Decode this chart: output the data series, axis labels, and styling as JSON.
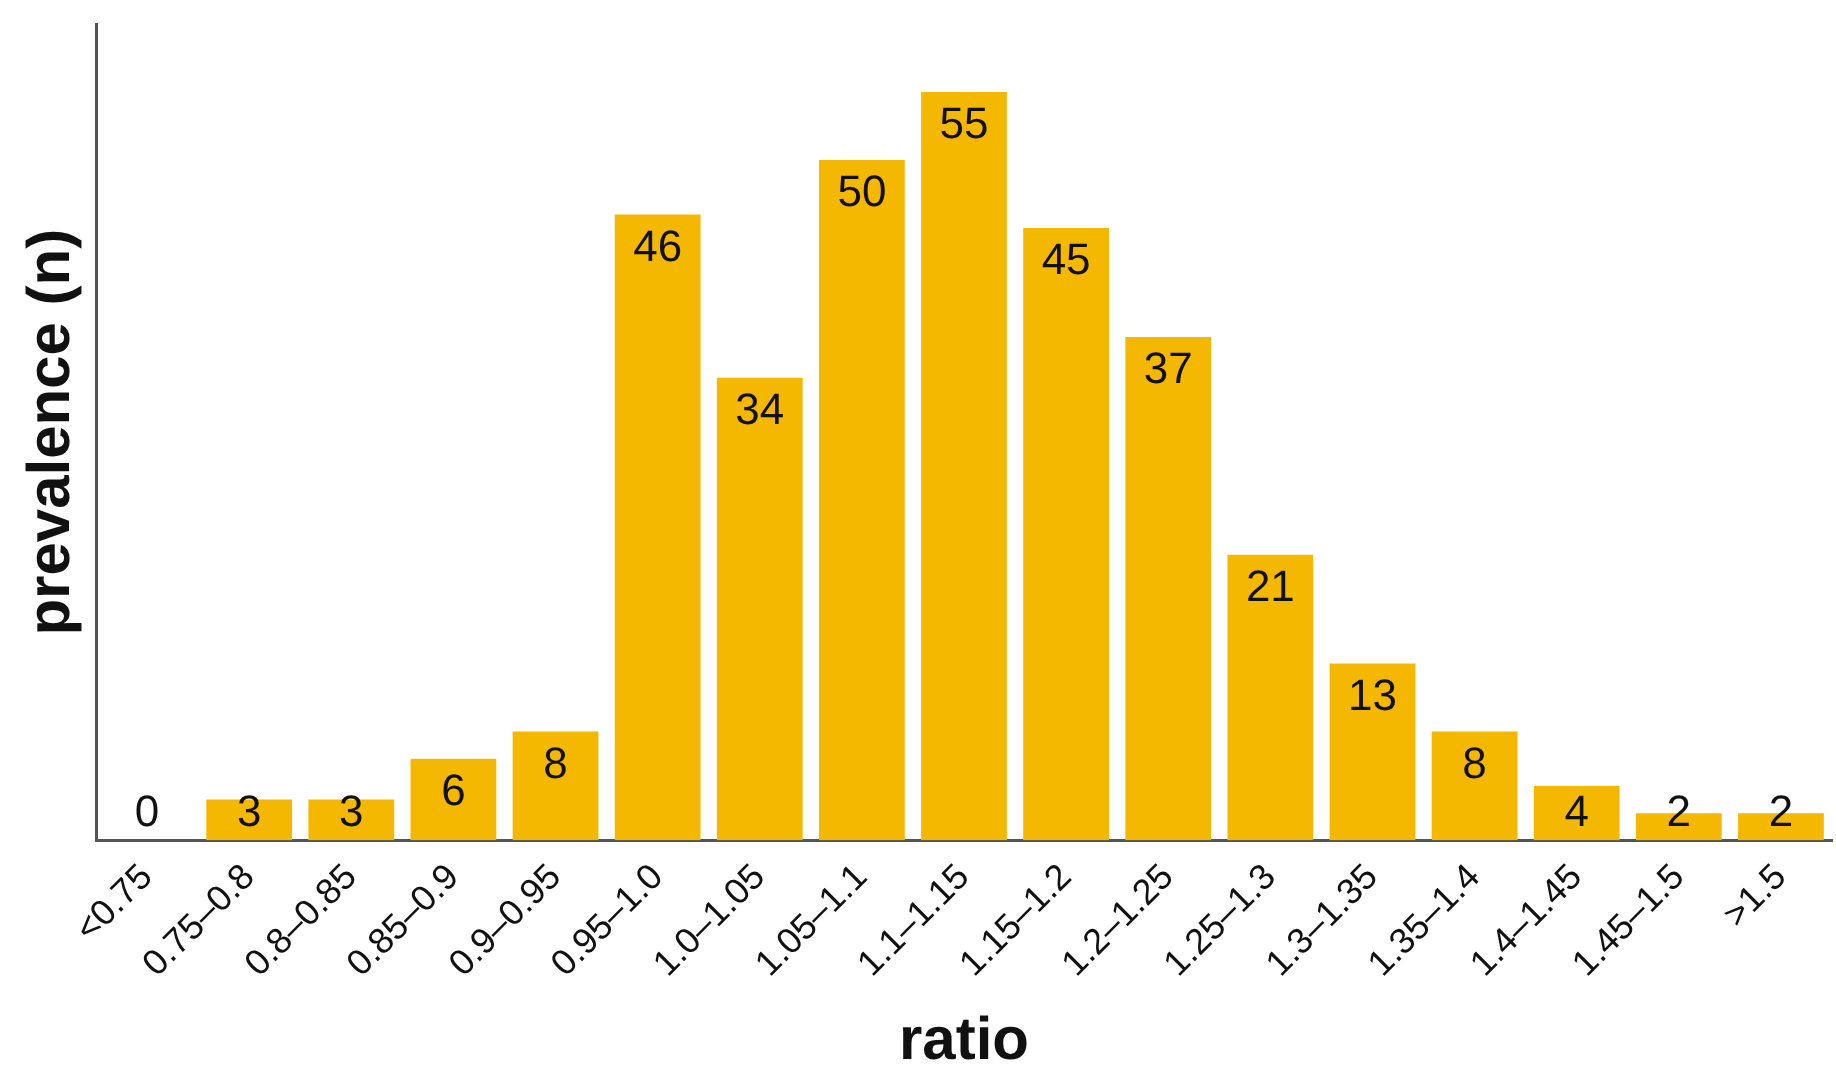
{
  "chart_data": {
    "type": "bar",
    "xlabel": "ratio",
    "ylabel": "prevalence (n)",
    "categories": [
      "<0.75",
      "0.75–0.8",
      "0.8–0.85",
      "0.85–0.9",
      "0.9–0.95",
      "0.95–1.0",
      "1.0–1.05",
      "1.05–1.1",
      "1.1–1.15",
      "1.15–1.2",
      "1.2–1.25",
      "1.25–1.3",
      "1.3–1.35",
      "1.35–1.4",
      "1.4–1.45",
      "1.45–1.5",
      ">1.5"
    ],
    "values": [
      0,
      3,
      3,
      6,
      8,
      46,
      34,
      50,
      55,
      45,
      37,
      21,
      13,
      8,
      4,
      2,
      2
    ],
    "color": "#f5b800",
    "data_labels": true,
    "tick_labels": "x",
    "grid": false,
    "legend": false
  }
}
